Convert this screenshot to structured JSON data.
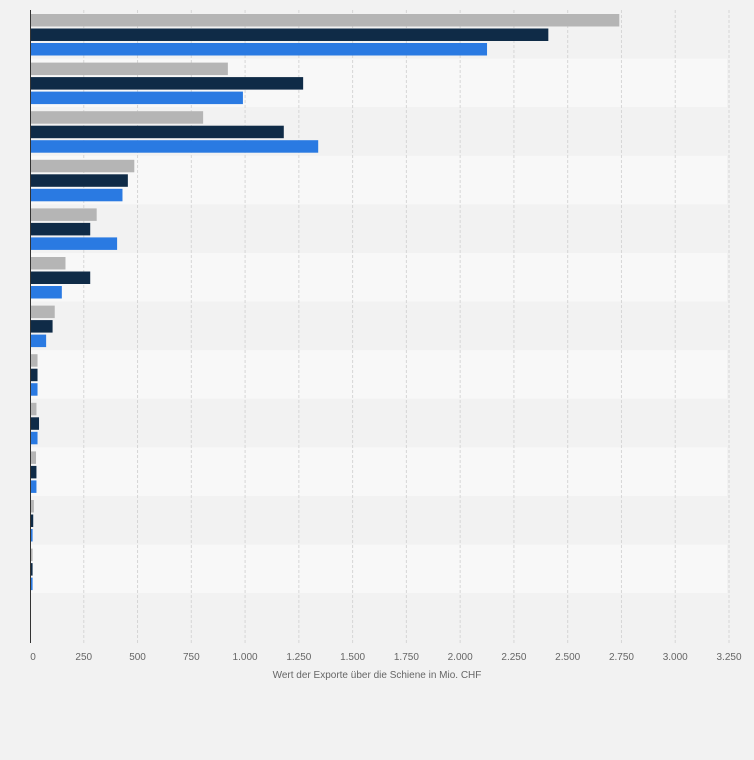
{
  "chart_data": {
    "type": "bar",
    "orientation": "horizontal",
    "categories": [
      "",
      "",
      "",
      "",
      "",
      "",
      "",
      "",
      "",
      "",
      "",
      "",
      ""
    ],
    "series": [
      {
        "color": "#b5b5b5",
        "values": [
          2740,
          920,
          805,
          485,
          310,
          165,
          115,
          35,
          30,
          28,
          18,
          12,
          0
        ]
      },
      {
        "color": "#0f2b47",
        "values": [
          2410,
          1270,
          1180,
          455,
          280,
          280,
          105,
          35,
          42,
          30,
          15,
          12,
          0
        ]
      },
      {
        "color": "#2a7ae2",
        "values": [
          2125,
          990,
          1340,
          430,
          405,
          148,
          75,
          35,
          35,
          30,
          12,
          12,
          0
        ]
      }
    ],
    "x_ticks": [
      0,
      250,
      500,
      750,
      1000,
      1250,
      1500,
      1750,
      2000,
      2250,
      2500,
      2750,
      3000,
      3250
    ],
    "x_tick_labels": [
      "0",
      "250",
      "500",
      "750",
      "1.000",
      "1.250",
      "1.500",
      "1.750",
      "2.000",
      "2.250",
      "2.500",
      "2.750",
      "3.000",
      "3.250"
    ],
    "xlabel": "Wert der Exporte über die Schiene in Mio. CHF",
    "xlim": [
      0,
      3250
    ],
    "grid": true,
    "grid_style": "dashed vertical",
    "legend": "none"
  },
  "colors": {
    "background": "#f2f2f2",
    "band_dark": "#f2f2f2",
    "band_light": "#f8f8f8",
    "gridline": "#d6d6d6",
    "axis": "#333333"
  }
}
